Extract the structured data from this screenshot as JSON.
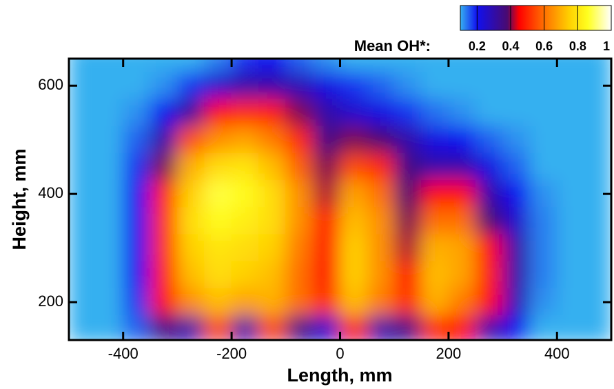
{
  "chart_data": {
    "type": "heatmap",
    "x_label": "Length, mm",
    "y_label": "Height, mm",
    "colorbar_label": "Mean OH*:",
    "x": [
      -475,
      -425,
      -375,
      -325,
      -275,
      -225,
      -175,
      -125,
      -75,
      -25,
      25,
      75,
      125,
      175,
      225,
      275,
      325,
      375,
      425,
      475
    ],
    "y": [
      650,
      600,
      550,
      500,
      450,
      400,
      350,
      300,
      250,
      200,
      150
    ],
    "values": [
      [
        0.1,
        0.1,
        0.1,
        0.1,
        0.1,
        0.13,
        0.18,
        0.2,
        0.15,
        0.12,
        0.1,
        0.1,
        0.1,
        0.1,
        0.1,
        0.1,
        0.1,
        0.1,
        0.1,
        0.1
      ],
      [
        0.1,
        0.1,
        0.1,
        0.12,
        0.18,
        0.25,
        0.3,
        0.3,
        0.28,
        0.22,
        0.18,
        0.15,
        0.12,
        0.1,
        0.1,
        0.1,
        0.1,
        0.1,
        0.1,
        0.1
      ],
      [
        0.1,
        0.1,
        0.12,
        0.2,
        0.32,
        0.45,
        0.5,
        0.48,
        0.4,
        0.3,
        0.25,
        0.22,
        0.18,
        0.14,
        0.12,
        0.1,
        0.1,
        0.1,
        0.1,
        0.1
      ],
      [
        0.1,
        0.1,
        0.15,
        0.3,
        0.55,
        0.65,
        0.68,
        0.62,
        0.5,
        0.35,
        0.4,
        0.38,
        0.3,
        0.22,
        0.2,
        0.15,
        0.12,
        0.1,
        0.1,
        0.1
      ],
      [
        0.1,
        0.1,
        0.18,
        0.4,
        0.7,
        0.78,
        0.8,
        0.72,
        0.58,
        0.4,
        0.55,
        0.5,
        0.35,
        0.3,
        0.3,
        0.22,
        0.15,
        0.1,
        0.1,
        0.1
      ],
      [
        0.1,
        0.1,
        0.2,
        0.48,
        0.75,
        0.88,
        0.85,
        0.78,
        0.65,
        0.42,
        0.68,
        0.6,
        0.38,
        0.45,
        0.45,
        0.3,
        0.2,
        0.12,
        0.1,
        0.1
      ],
      [
        0.1,
        0.1,
        0.2,
        0.5,
        0.78,
        0.85,
        0.82,
        0.78,
        0.65,
        0.45,
        0.72,
        0.65,
        0.4,
        0.6,
        0.6,
        0.38,
        0.25,
        0.13,
        0.1,
        0.1
      ],
      [
        0.1,
        0.1,
        0.2,
        0.5,
        0.75,
        0.8,
        0.78,
        0.75,
        0.62,
        0.45,
        0.75,
        0.65,
        0.42,
        0.7,
        0.68,
        0.45,
        0.3,
        0.13,
        0.1,
        0.1
      ],
      [
        0.1,
        0.1,
        0.2,
        0.48,
        0.72,
        0.78,
        0.75,
        0.72,
        0.6,
        0.45,
        0.75,
        0.65,
        0.45,
        0.72,
        0.68,
        0.48,
        0.3,
        0.13,
        0.1,
        0.1
      ],
      [
        0.1,
        0.1,
        0.18,
        0.45,
        0.65,
        0.72,
        0.68,
        0.7,
        0.6,
        0.5,
        0.72,
        0.62,
        0.5,
        0.7,
        0.62,
        0.45,
        0.28,
        0.12,
        0.1,
        0.1
      ],
      [
        0.1,
        0.1,
        0.15,
        0.35,
        0.3,
        0.55,
        0.3,
        0.55,
        0.35,
        0.25,
        0.5,
        0.3,
        0.35,
        0.5,
        0.45,
        0.3,
        0.2,
        0.1,
        0.1,
        0.1
      ]
    ],
    "xlim": [
      -500,
      500
    ],
    "ylim": [
      130,
      650
    ],
    "xticks": [
      -400,
      -200,
      0,
      200,
      400
    ],
    "yticks": [
      200,
      400,
      600
    ],
    "clim": [
      0.1,
      1
    ],
    "cticks": [
      0.2,
      0.4,
      0.6,
      0.8,
      1
    ],
    "colorscale": [
      {
        "stop": 0.1,
        "color": "#35b0f0"
      },
      {
        "stop": 0.2,
        "color": "#1010f0"
      },
      {
        "stop": 0.38,
        "color": "#4a0a70"
      },
      {
        "stop": 0.45,
        "color": "#ff0000"
      },
      {
        "stop": 0.6,
        "color": "#ff7000"
      },
      {
        "stop": 0.75,
        "color": "#ffd000"
      },
      {
        "stop": 0.86,
        "color": "#ffff20"
      },
      {
        "stop": 1,
        "color": "#ffffff"
      }
    ]
  }
}
